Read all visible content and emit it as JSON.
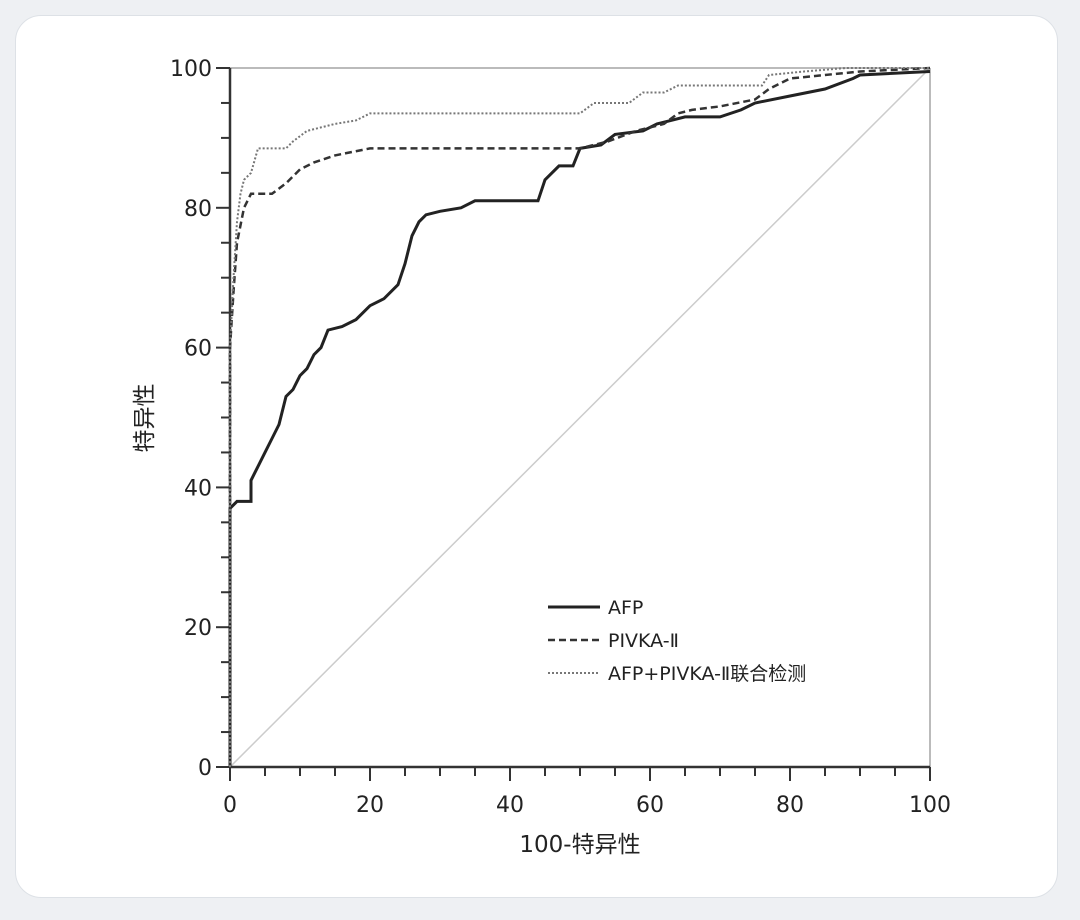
{
  "chart_data": {
    "type": "line",
    "title": "",
    "xlabel": "100-特异性",
    "ylabel": "特异性",
    "xlim": [
      0,
      100
    ],
    "ylim": [
      0,
      100
    ],
    "xticks": [
      "0",
      "20",
      "40",
      "60",
      "80",
      "100"
    ],
    "yticks": [
      "0",
      "20",
      "40",
      "60",
      "80",
      "100"
    ],
    "grid": false,
    "legend_position": "bottom-right",
    "reference_line": {
      "style": "diagonal",
      "color": "#cccccc"
    },
    "series": [
      {
        "name": "AFP",
        "style": "solid",
        "color": "#222222",
        "points": [
          [
            0,
            0
          ],
          [
            0,
            37
          ],
          [
            1,
            38
          ],
          [
            3,
            38
          ],
          [
            3,
            41
          ],
          [
            4,
            43
          ],
          [
            5,
            45
          ],
          [
            6,
            47
          ],
          [
            7,
            49
          ],
          [
            8,
            53
          ],
          [
            9,
            54
          ],
          [
            10,
            56
          ],
          [
            11,
            57
          ],
          [
            12,
            59
          ],
          [
            13,
            60
          ],
          [
            14,
            62.5
          ],
          [
            16,
            63
          ],
          [
            18,
            64
          ],
          [
            20,
            66
          ],
          [
            22,
            67
          ],
          [
            24,
            69
          ],
          [
            25,
            72
          ],
          [
            26,
            76
          ],
          [
            27,
            78
          ],
          [
            28,
            79
          ],
          [
            30,
            79.5
          ],
          [
            33,
            80
          ],
          [
            35,
            81
          ],
          [
            44,
            81
          ],
          [
            45,
            84
          ],
          [
            47,
            86
          ],
          [
            49,
            86
          ],
          [
            50,
            88.5
          ],
          [
            53,
            89
          ],
          [
            55,
            90.5
          ],
          [
            59,
            91
          ],
          [
            61,
            92
          ],
          [
            63,
            92.5
          ],
          [
            65,
            93
          ],
          [
            70,
            93
          ],
          [
            73,
            94
          ],
          [
            75,
            95
          ],
          [
            80,
            96
          ],
          [
            85,
            97
          ],
          [
            89,
            98.5
          ],
          [
            90,
            99
          ],
          [
            100,
            99.5
          ]
        ]
      },
      {
        "name": "PIVKA-Ⅱ",
        "style": "dashed",
        "color": "#333333",
        "points": [
          [
            0,
            0
          ],
          [
            0,
            60
          ],
          [
            0.5,
            68
          ],
          [
            1,
            75
          ],
          [
            2,
            80
          ],
          [
            3,
            82
          ],
          [
            6,
            82
          ],
          [
            8,
            83.5
          ],
          [
            10,
            85.5
          ],
          [
            12,
            86.5
          ],
          [
            15,
            87.5
          ],
          [
            20,
            88.5
          ],
          [
            50,
            88.5
          ],
          [
            54,
            89.5
          ],
          [
            58,
            91
          ],
          [
            62,
            92
          ],
          [
            64,
            93.5
          ],
          [
            66,
            94
          ],
          [
            70,
            94.5
          ],
          [
            75,
            95.5
          ],
          [
            77,
            97
          ],
          [
            80,
            98.5
          ],
          [
            85,
            99
          ],
          [
            90,
            99.5
          ],
          [
            100,
            100
          ]
        ]
      },
      {
        "name": "AFP+PIVKA-Ⅱ联合检测",
        "style": "dotted",
        "color": "#777777",
        "points": [
          [
            0,
            0
          ],
          [
            0,
            60
          ],
          [
            0.5,
            70
          ],
          [
            1,
            78
          ],
          [
            1.5,
            82
          ],
          [
            2,
            84
          ],
          [
            3,
            85
          ],
          [
            4,
            88.5
          ],
          [
            8,
            88.5
          ],
          [
            9,
            89.5
          ],
          [
            11,
            91
          ],
          [
            13,
            91.5
          ],
          [
            15,
            92
          ],
          [
            18,
            92.5
          ],
          [
            20,
            93.5
          ],
          [
            50,
            93.5
          ],
          [
            52,
            95
          ],
          [
            57,
            95
          ],
          [
            59,
            96.5
          ],
          [
            62,
            96.5
          ],
          [
            64,
            97.5
          ],
          [
            76,
            97.5
          ],
          [
            77,
            99
          ],
          [
            82,
            99.5
          ],
          [
            88,
            100
          ],
          [
            100,
            100
          ]
        ]
      }
    ]
  }
}
